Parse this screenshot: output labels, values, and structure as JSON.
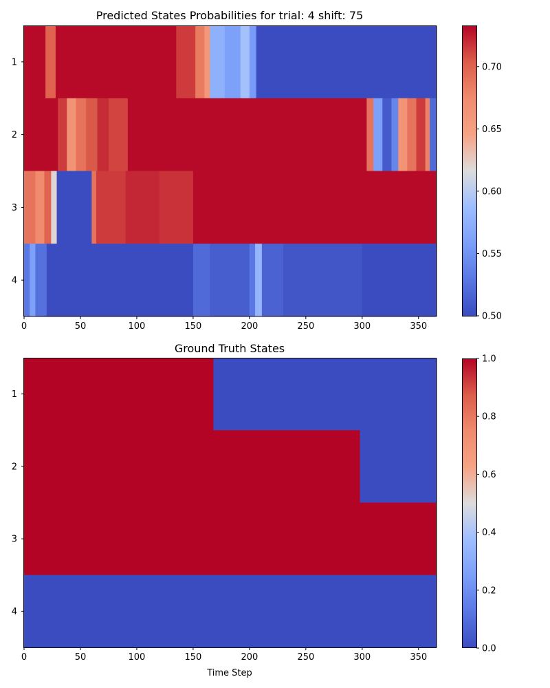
{
  "chart_data": [
    {
      "type": "heatmap",
      "title": "Predicted States Probabilities for trial: 4 shift: 75",
      "xlabel": "",
      "ylabel": "",
      "xlim": [
        0,
        366
      ],
      "xticks": [
        0,
        50,
        100,
        150,
        200,
        250,
        300,
        350
      ],
      "rows": [
        "1",
        "2",
        "3",
        "4"
      ],
      "colormap": "coolwarm",
      "colorbar": {
        "min": 0.5,
        "max": 0.733,
        "ticks": [
          0.5,
          0.55,
          0.6,
          0.65,
          0.7
        ],
        "tick_labels": [
          "0.50",
          "0.55",
          "0.60",
          "0.65",
          "0.70"
        ]
      },
      "segments": {
        "1": [
          [
            0,
            19,
            0.731
          ],
          [
            19,
            28,
            0.7
          ],
          [
            28,
            95,
            0.731
          ],
          [
            95,
            135,
            0.731
          ],
          [
            135,
            152,
            0.715
          ],
          [
            152,
            160,
            0.685
          ],
          [
            160,
            165,
            0.66
          ],
          [
            165,
            178,
            0.575
          ],
          [
            178,
            192,
            0.56
          ],
          [
            192,
            200,
            0.59
          ],
          [
            200,
            206,
            0.555
          ],
          [
            206,
            366,
            0.5
          ]
        ],
        "2": [
          [
            0,
            30,
            0.731
          ],
          [
            30,
            38,
            0.715
          ],
          [
            38,
            46,
            0.665
          ],
          [
            46,
            55,
            0.69
          ],
          [
            55,
            65,
            0.705
          ],
          [
            65,
            75,
            0.72
          ],
          [
            75,
            92,
            0.712
          ],
          [
            92,
            304,
            0.731
          ],
          [
            304,
            310,
            0.69
          ],
          [
            310,
            318,
            0.56
          ],
          [
            318,
            326,
            0.51
          ],
          [
            326,
            332,
            0.54
          ],
          [
            332,
            340,
            0.665
          ],
          [
            340,
            348,
            0.69
          ],
          [
            348,
            356,
            0.715
          ],
          [
            356,
            360,
            0.68
          ],
          [
            360,
            366,
            0.52
          ]
        ],
        "3": [
          [
            0,
            10,
            0.69
          ],
          [
            10,
            18,
            0.675
          ],
          [
            18,
            24,
            0.7
          ],
          [
            24,
            29,
            0.62
          ],
          [
            29,
            60,
            0.5
          ],
          [
            60,
            64,
            0.69
          ],
          [
            64,
            90,
            0.715
          ],
          [
            90,
            120,
            0.722
          ],
          [
            120,
            150,
            0.718
          ],
          [
            150,
            366,
            0.731
          ]
        ],
        "4": [
          [
            0,
            5,
            0.53
          ],
          [
            5,
            10,
            0.56
          ],
          [
            10,
            20,
            0.525
          ],
          [
            20,
            150,
            0.5
          ],
          [
            150,
            165,
            0.52
          ],
          [
            165,
            200,
            0.512
          ],
          [
            200,
            205,
            0.53
          ],
          [
            205,
            211,
            0.58
          ],
          [
            211,
            230,
            0.515
          ],
          [
            230,
            300,
            0.507
          ],
          [
            300,
            366,
            0.5
          ]
        ]
      }
    },
    {
      "type": "heatmap",
      "title": "Ground Truth States",
      "xlabel": "Time Step",
      "ylabel": "",
      "xlim": [
        0,
        366
      ],
      "xticks": [
        0,
        50,
        100,
        150,
        200,
        250,
        300,
        350
      ],
      "rows": [
        "1",
        "2",
        "3",
        "4"
      ],
      "colormap": "coolwarm",
      "colorbar": {
        "min": 0.0,
        "max": 1.0,
        "ticks": [
          0.0,
          0.2,
          0.4,
          0.6,
          0.8,
          1.0
        ],
        "tick_labels": [
          "0.0",
          "0.2",
          "0.4",
          "0.6",
          "0.8",
          "1.0"
        ]
      },
      "segments": {
        "1": [
          [
            0,
            168,
            1.0
          ],
          [
            168,
            366,
            0.0
          ]
        ],
        "2": [
          [
            0,
            298,
            1.0
          ],
          [
            298,
            366,
            0.0
          ]
        ],
        "3": [
          [
            0,
            366,
            1.0
          ]
        ],
        "4": [
          [
            0,
            366,
            0.0
          ]
        ]
      }
    }
  ]
}
